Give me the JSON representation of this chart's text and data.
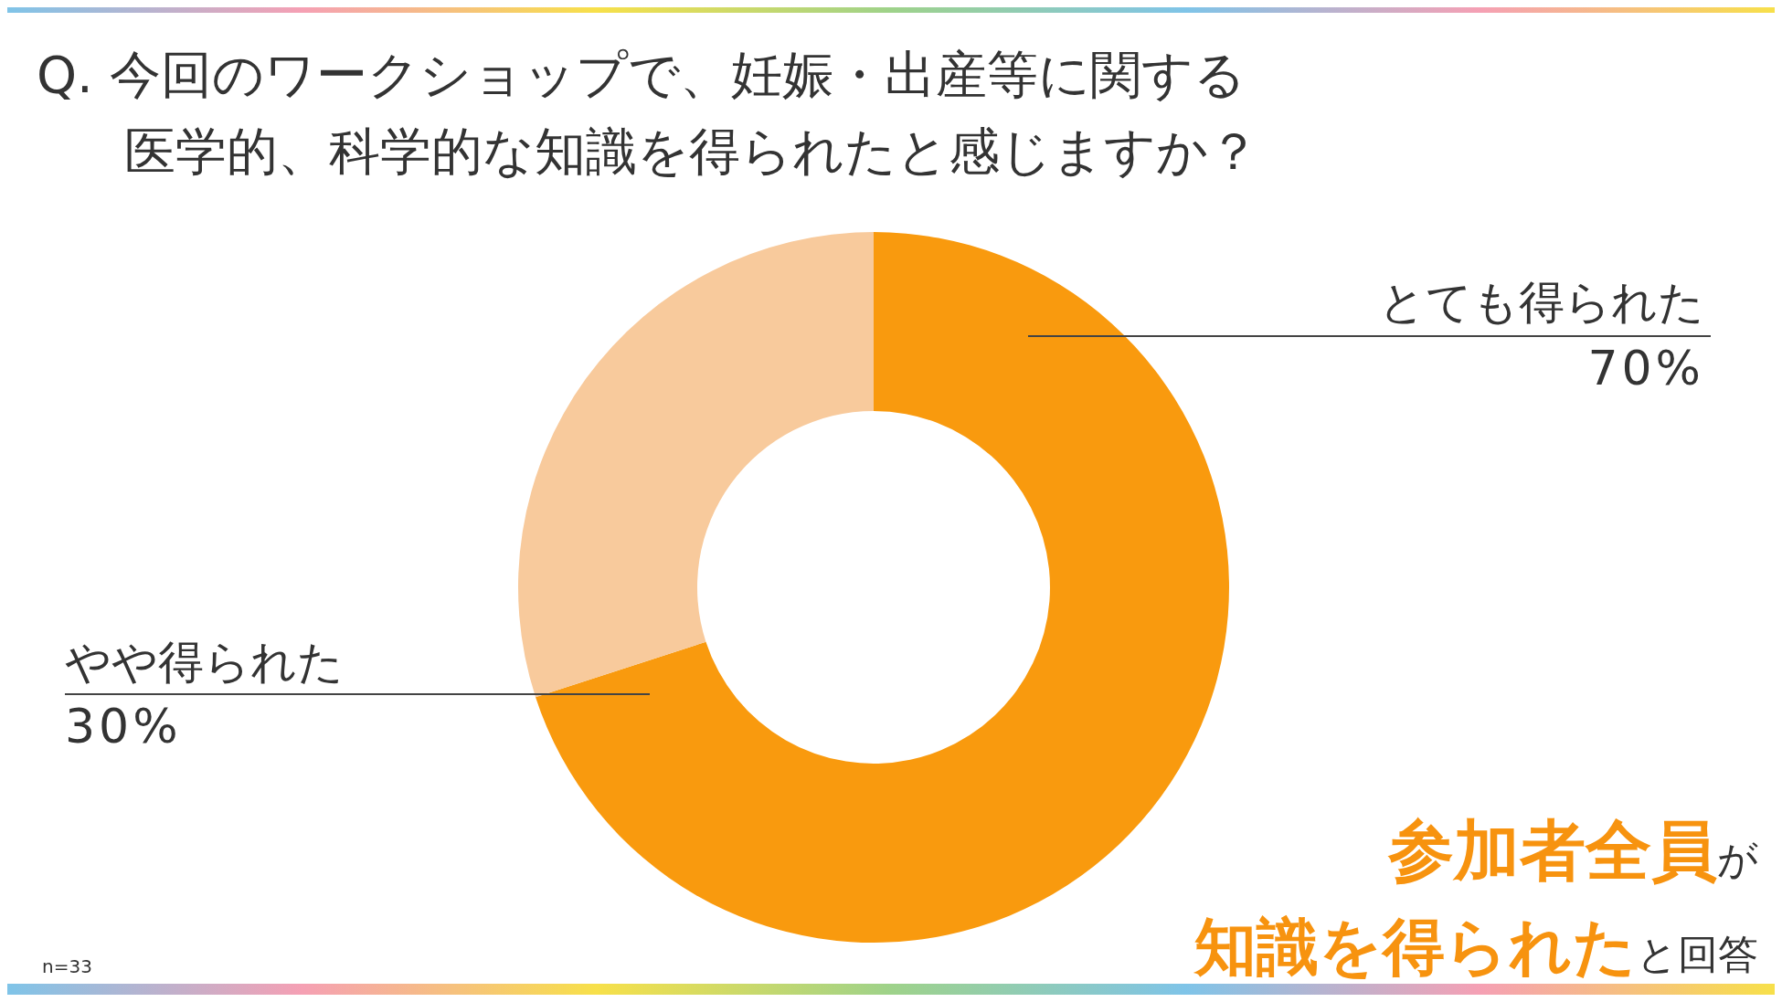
{
  "chart_data": {
    "type": "donut",
    "title": "Q. 今回のワークショップで、妊娠・出産等に関する医学的、科学的な知識を得られたと感じますか？",
    "categories": [
      "とても得られた",
      "やや得られた"
    ],
    "values": [
      70,
      30
    ],
    "value_labels": [
      "70%",
      "30%"
    ],
    "colors": [
      "#f99a0e",
      "#f8ca9c"
    ],
    "annotations": [
      "参加者全員",
      "が",
      "知識を得られた",
      "と回答",
      "n=33"
    ]
  }
}
